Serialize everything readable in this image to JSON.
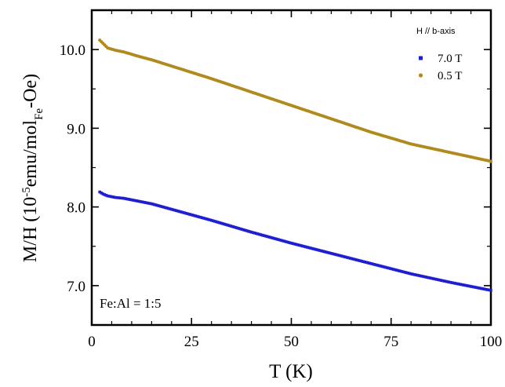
{
  "chart_data": {
    "type": "scatter",
    "xlabel": "T (K)",
    "ylabel_parts": {
      "main": "M/H (10",
      "sup": "-5",
      "mid": "emu/mol",
      "sub": "Fe",
      "tail": "-Oe)"
    },
    "xlim": [
      0,
      100
    ],
    "ylim": [
      6.5,
      10.5
    ],
    "x_ticks": [
      0,
      25,
      50,
      75,
      100
    ],
    "y_ticks": [
      7.0,
      8.0,
      9.0,
      10.0
    ],
    "x_tick_labels": [
      "0",
      "25",
      "50",
      "75",
      "100"
    ],
    "y_tick_labels": [
      "7.0",
      "8.0",
      "9.0",
      "10.0"
    ],
    "grid": false,
    "legend_title": "H // b-axis",
    "legend_position": "top-right",
    "annotation": "Fe:Al = 1:5",
    "series": [
      {
        "name": "7.0 T",
        "marker": "square",
        "color": "#1f1fd0",
        "points": [
          [
            2,
            8.19
          ],
          [
            3,
            8.16
          ],
          [
            4,
            8.14
          ],
          [
            6,
            8.12
          ],
          [
            8,
            8.11
          ],
          [
            10,
            8.09
          ],
          [
            12,
            8.07
          ],
          [
            15,
            8.04
          ],
          [
            20,
            7.97
          ],
          [
            25,
            7.9
          ],
          [
            30,
            7.83
          ],
          [
            40,
            7.68
          ],
          [
            50,
            7.54
          ],
          [
            60,
            7.41
          ],
          [
            70,
            7.28
          ],
          [
            80,
            7.15
          ],
          [
            90,
            7.04
          ],
          [
            100,
            6.94
          ]
        ]
      },
      {
        "name": "0.5 T",
        "marker": "circle",
        "color": "#b08a1e",
        "points": [
          [
            2,
            10.12
          ],
          [
            3,
            10.07
          ],
          [
            4,
            10.02
          ],
          [
            6,
            9.99
          ],
          [
            8,
            9.97
          ],
          [
            10,
            9.94
          ],
          [
            12,
            9.91
          ],
          [
            15,
            9.87
          ],
          [
            20,
            9.79
          ],
          [
            25,
            9.71
          ],
          [
            30,
            9.63
          ],
          [
            40,
            9.46
          ],
          [
            50,
            9.29
          ],
          [
            60,
            9.12
          ],
          [
            70,
            8.95
          ],
          [
            80,
            8.8
          ],
          [
            90,
            8.69
          ],
          [
            100,
            8.58
          ]
        ]
      }
    ]
  }
}
